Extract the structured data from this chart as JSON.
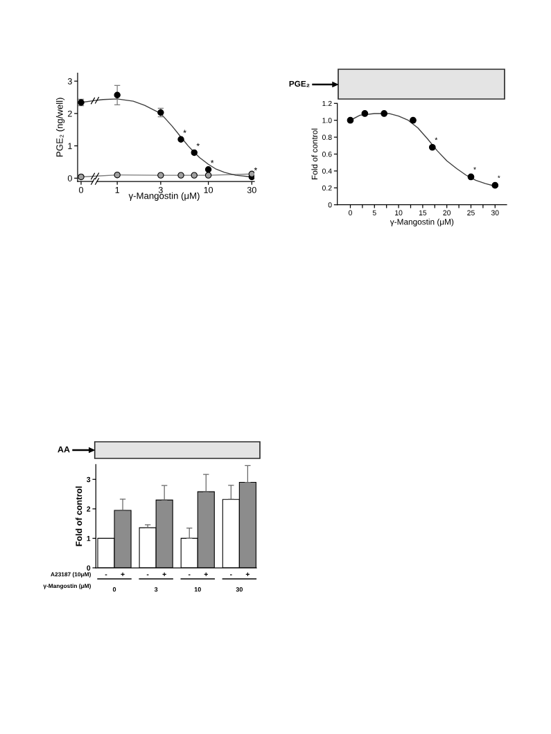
{
  "chart_data": [
    {
      "type": "line",
      "categories": [
        "0"
      ],
      "ylim": [
        -0.1,
        3.25
      ],
      "tick_labels": "x",
      "series": [
        {
          "type": "scatter",
          "marker": "circle",
          "color": "#000000",
          "values": [
            2.34
          ],
          "errors": [
            0.1
          ]
        },
        {
          "type": "line",
          "marker": "circle",
          "color": "#a0a0a0",
          "values": [
            0.04
          ]
        }
      ]
    },
    {
      "type": "scatter",
      "xlabel": "γ-Mangostin (μM)",
      "ylabel": "PGE₂ (ng/well)",
      "log": "x",
      "xlim": [
        0.6,
        32
      ],
      "xticks": [
        1,
        3,
        10,
        30
      ],
      "ylim": [
        -0.1,
        3.25
      ],
      "yticks": [
        0,
        1,
        2,
        3
      ],
      "series": [
        {
          "type": "scatter",
          "marker": "circle",
          "color": "#000000",
          "x": [
            1,
            3,
            5,
            7,
            10,
            30
          ],
          "values": [
            2.57,
            2.03,
            1.2,
            0.79,
            0.27,
            0.04
          ],
          "errors": [
            0.3,
            0.13,
            null,
            null,
            null,
            null
          ]
        },
        {
          "type": "line",
          "marker": "circle",
          "color": "#a0a0a0",
          "x": [
            1,
            3,
            5,
            7,
            10,
            30
          ],
          "values": [
            0.1,
            0.09,
            0.09,
            0.09,
            0.09,
            0.13
          ]
        },
        {
          "type": "line",
          "color": "#3c3c3c",
          "x": [
            0.6,
            0.7,
            1,
            1.5,
            2,
            3,
            4,
            5,
            6,
            7,
            8,
            10,
            12,
            15,
            20,
            30,
            31.5
          ],
          "values": [
            2.41,
            2.43,
            2.45,
            2.38,
            2.25,
            2.0,
            1.61,
            1.27,
            1.0,
            0.8,
            0.64,
            0.43,
            0.29,
            0.18,
            0.09,
            0.04,
            0.03
          ]
        }
      ],
      "annotations": [
        {
          "text": "*",
          "x": 5,
          "y": 1.2
        },
        {
          "text": "*",
          "x": 7,
          "y": 0.79
        },
        {
          "text": "*",
          "x": 10,
          "y": 0.27
        },
        {
          "text": "*",
          "x": 30,
          "y": 0.04
        }
      ]
    },
    {
      "type": "scatter",
      "xlabel": "γ-Mangostin (μM)",
      "ylabel": "Fold of control",
      "xlim": [
        -2.7,
        32.4
      ],
      "xticks": [
        0,
        {
          "value": 2.5,
          "label": null
        },
        5,
        {
          "value": 7.5,
          "label": null
        },
        10,
        {
          "value": 12.5,
          "label": null
        },
        15,
        {
          "value": 17.5,
          "label": null
        },
        20,
        {
          "value": 22.5,
          "label": null
        },
        25,
        {
          "value": 27.5,
          "label": null
        },
        30
      ],
      "ylim": [
        0,
        1.2
      ],
      "yticks": [
        0,
        0.2,
        0.4,
        0.6,
        0.8,
        {
          "value": 1,
          "label": "1.0"
        },
        1.2
      ],
      "series": [
        {
          "type": "scatter",
          "marker": "circle",
          "color": "#000000",
          "x": [
            0,
            3,
            7,
            13,
            17,
            25,
            30
          ],
          "values": [
            1.0,
            1.08,
            1.08,
            1.0,
            0.68,
            0.33,
            0.23
          ]
        },
        {
          "type": "line",
          "color": "#3c3c3c",
          "x": [
            0,
            2,
            5,
            8,
            10,
            12,
            14,
            16,
            18,
            20,
            22,
            24,
            26,
            28,
            30
          ],
          "values": [
            1.0,
            1.06,
            1.08,
            1.08,
            1.05,
            1.0,
            0.91,
            0.78,
            0.64,
            0.52,
            0.43,
            0.35,
            0.29,
            0.25,
            0.22
          ]
        }
      ],
      "annotations": [
        "PGE₂",
        {
          "text": "*",
          "x": 17,
          "y": 0.68
        },
        {
          "text": "*",
          "x": 25,
          "y": 0.33
        },
        {
          "text": "*",
          "x": 30,
          "y": 0.23
        }
      ]
    },
    {
      "type": "bar",
      "categories": [
        "0",
        "3",
        "10",
        "30"
      ],
      "xlabel": "γ-Mangostin (μM)",
      "ylabel": "Fold of control",
      "legend_title": "A23187 (10μM)",
      "ylim": [
        0,
        3.5
      ],
      "yticks": [
        0,
        1,
        2,
        3
      ],
      "series": [
        {
          "name": "-",
          "color": "#ffffff",
          "values": [
            1.0,
            1.36,
            1.0,
            2.32
          ],
          "errors": [
            null,
            [
              1.36,
              1.46
            ],
            [
              1.0,
              1.35
            ],
            [
              2.32,
              2.8
            ]
          ]
        },
        {
          "name": "+",
          "color": "#8c8c8c",
          "values": [
            1.95,
            2.3,
            2.58,
            2.9
          ],
          "errors": [
            [
              1.95,
              2.33
            ],
            [
              2.3,
              2.79
            ],
            [
              2.58,
              3.17
            ],
            [
              2.9,
              3.47
            ]
          ]
        }
      ],
      "annotations": [
        "AA"
      ]
    }
  ]
}
